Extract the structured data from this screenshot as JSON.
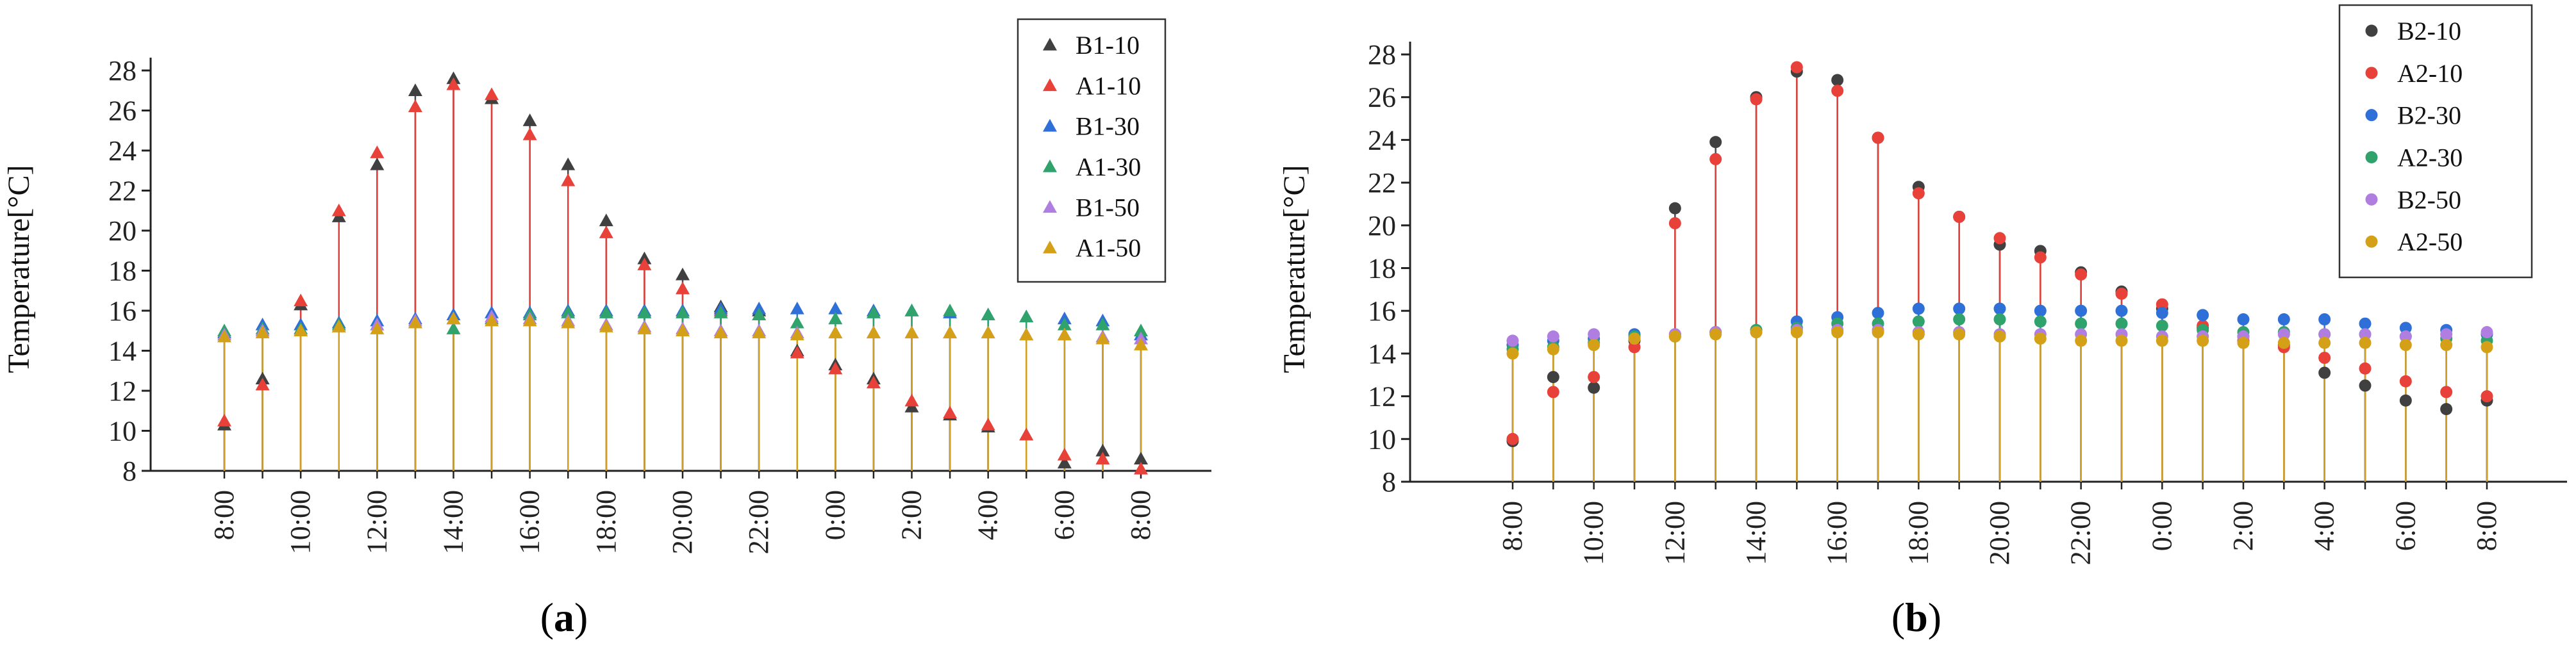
{
  "chart_data": [
    {
      "type": "scatter",
      "panel_label": "a",
      "marker": "triangle",
      "ylabel": "Temperature[°C]",
      "ylim": [
        8,
        28
      ],
      "yticks": [
        "8",
        "10",
        "12",
        "14",
        "16",
        "18",
        "20",
        "22",
        "24",
        "26",
        "28"
      ],
      "xticks": [
        "8:00",
        "10:00",
        "12:00",
        "14:00",
        "16:00",
        "18:00",
        "20:00",
        "22:00",
        "0:00",
        "2:00",
        "4:00",
        "6:00",
        "8:00"
      ],
      "hours": [
        8,
        9,
        10,
        11,
        12,
        13,
        14,
        15,
        16,
        17,
        18,
        19,
        20,
        21,
        22,
        23,
        24,
        25,
        26,
        27,
        28,
        29,
        30,
        31,
        32
      ],
      "legend_position": "top-right",
      "series": [
        {
          "name": "B1-10",
          "color": "#404040",
          "values": [
            10.3,
            12.6,
            16.3,
            20.7,
            23.3,
            27.0,
            27.6,
            26.6,
            25.5,
            23.3,
            20.5,
            18.6,
            17.8,
            16.2,
            16.0,
            14.0,
            13.3,
            12.6,
            11.2,
            10.8,
            10.2,
            9.8,
            8.4,
            9.0,
            8.6
          ]
        },
        {
          "name": "A1-10",
          "color": "#e8413a",
          "values": [
            10.5,
            12.3,
            16.5,
            21.0,
            23.9,
            26.2,
            27.3,
            26.8,
            24.8,
            22.5,
            19.9,
            18.3,
            17.1,
            16.0,
            15.8,
            13.9,
            13.1,
            12.4,
            11.5,
            10.9,
            10.3,
            9.8,
            8.8,
            8.6,
            8.1
          ]
        },
        {
          "name": "B1-30",
          "color": "#2e6fd8",
          "values": [
            14.9,
            15.3,
            15.3,
            15.4,
            15.5,
            15.6,
            15.8,
            15.9,
            15.9,
            16.0,
            16.0,
            16.0,
            16.0,
            16.1,
            16.1,
            16.1,
            16.1,
            16.0,
            16.0,
            15.9,
            15.8,
            15.7,
            15.6,
            15.5,
            14.8
          ]
        },
        {
          "name": "A1-30",
          "color": "#2fa36b",
          "values": [
            15.0,
            15.1,
            15.1,
            15.3,
            15.3,
            15.4,
            15.1,
            15.6,
            15.8,
            15.9,
            15.9,
            15.9,
            15.9,
            15.9,
            15.8,
            15.4,
            15.6,
            15.9,
            16.0,
            16.0,
            15.8,
            15.7,
            15.3,
            15.3,
            15.0
          ]
        },
        {
          "name": "B1-50",
          "color": "#b07ee0",
          "values": [
            14.8,
            15.0,
            15.0,
            15.2,
            15.3,
            15.5,
            15.6,
            15.7,
            15.6,
            15.5,
            15.3,
            15.2,
            15.1,
            15.0,
            15.0,
            14.9,
            14.9,
            14.9,
            14.9,
            14.9,
            14.9,
            14.8,
            14.8,
            14.7,
            14.6
          ]
        },
        {
          "name": "A1-50",
          "color": "#d4a017",
          "values": [
            14.7,
            14.9,
            15.0,
            15.2,
            15.1,
            15.4,
            15.6,
            15.5,
            15.5,
            15.4,
            15.2,
            15.1,
            15.0,
            14.9,
            14.9,
            14.8,
            14.9,
            14.9,
            14.9,
            14.9,
            14.9,
            14.8,
            14.8,
            14.6,
            14.3
          ]
        }
      ]
    },
    {
      "type": "scatter",
      "panel_label": "b",
      "marker": "circle",
      "ylabel": "Temperature[°C]",
      "ylim": [
        8,
        28
      ],
      "yticks": [
        "8",
        "10",
        "12",
        "14",
        "16",
        "18",
        "20",
        "22",
        "24",
        "26",
        "28"
      ],
      "xticks": [
        "8:00",
        "10:00",
        "12:00",
        "14:00",
        "16:00",
        "18:00",
        "20:00",
        "22:00",
        "0:00",
        "2:00",
        "4:00",
        "6:00",
        "8:00"
      ],
      "hours": [
        8,
        9,
        10,
        11,
        12,
        13,
        14,
        15,
        16,
        17,
        18,
        19,
        20,
        21,
        22,
        23,
        24,
        25,
        26,
        27,
        28,
        29,
        30,
        31,
        32
      ],
      "legend_position": "top-right",
      "series": [
        {
          "name": "B2-10",
          "color": "#404040",
          "values": [
            9.9,
            12.9,
            12.4,
            14.6,
            20.8,
            23.9,
            26.0,
            27.2,
            26.8,
            24.1,
            21.8,
            20.4,
            19.1,
            18.8,
            17.8,
            16.9,
            16.1,
            15.2,
            14.8,
            14.4,
            13.1,
            12.5,
            11.8,
            11.4,
            11.8
          ]
        },
        {
          "name": "A2-10",
          "color": "#e8413a",
          "values": [
            10.0,
            12.2,
            12.9,
            14.3,
            20.1,
            23.1,
            25.9,
            27.4,
            26.3,
            24.1,
            21.5,
            20.4,
            19.4,
            18.5,
            17.7,
            16.8,
            16.3,
            15.3,
            14.6,
            14.3,
            13.8,
            13.3,
            12.7,
            12.2,
            12.0
          ]
        },
        {
          "name": "B2-30",
          "color": "#2e6fd8",
          "values": [
            14.4,
            14.6,
            14.7,
            14.9,
            14.9,
            15.0,
            15.1,
            15.5,
            15.7,
            15.9,
            16.1,
            16.1,
            16.1,
            16.0,
            16.0,
            16.0,
            15.9,
            15.8,
            15.6,
            15.6,
            15.6,
            15.4,
            15.2,
            15.1,
            14.9
          ]
        },
        {
          "name": "A2-30",
          "color": "#2fa36b",
          "values": [
            14.2,
            14.3,
            14.5,
            14.8,
            14.8,
            15.0,
            15.1,
            15.2,
            15.4,
            15.4,
            15.5,
            15.6,
            15.6,
            15.5,
            15.4,
            15.4,
            15.3,
            15.1,
            15.0,
            15.0,
            14.9,
            14.9,
            14.8,
            14.7,
            14.6
          ]
        },
        {
          "name": "B2-50",
          "color": "#b07ee0",
          "values": [
            14.6,
            14.8,
            14.9,
            14.7,
            14.9,
            15.0,
            15.0,
            15.1,
            15.1,
            15.1,
            15.0,
            15.0,
            14.9,
            14.9,
            14.9,
            14.9,
            14.8,
            14.8,
            14.8,
            14.9,
            14.9,
            14.9,
            14.8,
            14.9,
            15.0
          ]
        },
        {
          "name": "A2-50",
          "color": "#d4a017",
          "values": [
            14.0,
            14.2,
            14.4,
            14.7,
            14.8,
            14.9,
            15.0,
            15.0,
            15.0,
            15.0,
            14.9,
            14.9,
            14.8,
            14.7,
            14.6,
            14.6,
            14.6,
            14.6,
            14.5,
            14.5,
            14.5,
            14.5,
            14.4,
            14.4,
            14.3
          ]
        }
      ]
    }
  ]
}
